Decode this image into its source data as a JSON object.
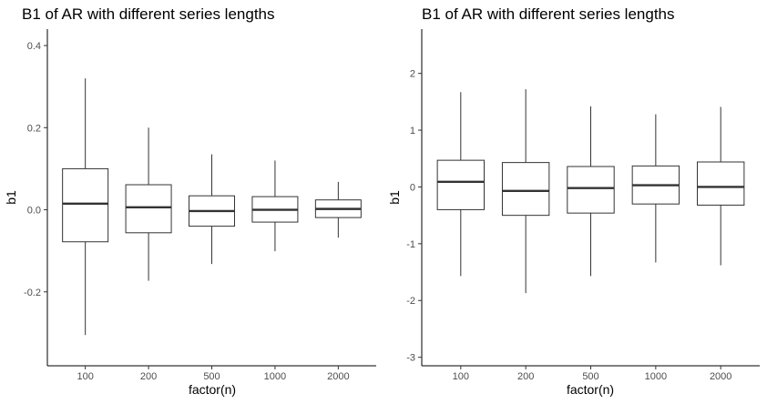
{
  "chart_data": [
    {
      "type": "boxplot",
      "title": "B1 of AR with different series lengths",
      "xlabel": "factor(n)",
      "ylabel": "b1",
      "categories": [
        "100",
        "200",
        "500",
        "1000",
        "2000"
      ],
      "ylim": [
        -0.38,
        0.44
      ],
      "yticks": [
        -0.2,
        0.0,
        0.2,
        0.4
      ],
      "ytick_labels": [
        "-0.2",
        "0.0",
        "0.2",
        "0.4"
      ],
      "boxes": [
        {
          "category": "100",
          "lower": -0.305,
          "q1": -0.078,
          "median": 0.015,
          "q3": 0.1,
          "upper": 0.32
        },
        {
          "category": "200",
          "lower": -0.173,
          "q1": -0.056,
          "median": 0.006,
          "q3": 0.061,
          "upper": 0.2
        },
        {
          "category": "500",
          "lower": -0.132,
          "q1": -0.04,
          "median": -0.003,
          "q3": 0.034,
          "upper": 0.135
        },
        {
          "category": "1000",
          "lower": -0.101,
          "q1": -0.03,
          "median": 0.0,
          "q3": 0.032,
          "upper": 0.12
        },
        {
          "category": "2000",
          "lower": -0.068,
          "q1": -0.019,
          "median": 0.002,
          "q3": 0.024,
          "upper": 0.068
        }
      ],
      "grid": false,
      "legend": "none"
    },
    {
      "type": "boxplot",
      "title": "B1 of AR with different series lengths",
      "xlabel": "factor(n)",
      "ylabel": "b1",
      "categories": [
        "100",
        "200",
        "500",
        "1000",
        "2000"
      ],
      "ylim": [
        -3.15,
        2.78
      ],
      "yticks": [
        -3,
        -2,
        -1,
        0,
        1,
        2
      ],
      "ytick_labels": [
        "-3",
        "-2",
        "-1",
        "0",
        "1",
        "2"
      ],
      "boxes": [
        {
          "category": "100",
          "lower": -1.57,
          "q1": -0.4,
          "median": 0.09,
          "q3": 0.47,
          "upper": 1.67
        },
        {
          "category": "200",
          "lower": -1.87,
          "q1": -0.5,
          "median": -0.07,
          "q3": 0.43,
          "upper": 1.72
        },
        {
          "category": "500",
          "lower": -1.57,
          "q1": -0.46,
          "median": -0.02,
          "q3": 0.36,
          "upper": 1.42
        },
        {
          "category": "1000",
          "lower": -1.33,
          "q1": -0.3,
          "median": 0.03,
          "q3": 0.37,
          "upper": 1.28
        },
        {
          "category": "2000",
          "lower": -1.38,
          "q1": -0.32,
          "median": 0.0,
          "q3": 0.44,
          "upper": 1.41
        }
      ],
      "grid": false,
      "legend": "none"
    }
  ]
}
